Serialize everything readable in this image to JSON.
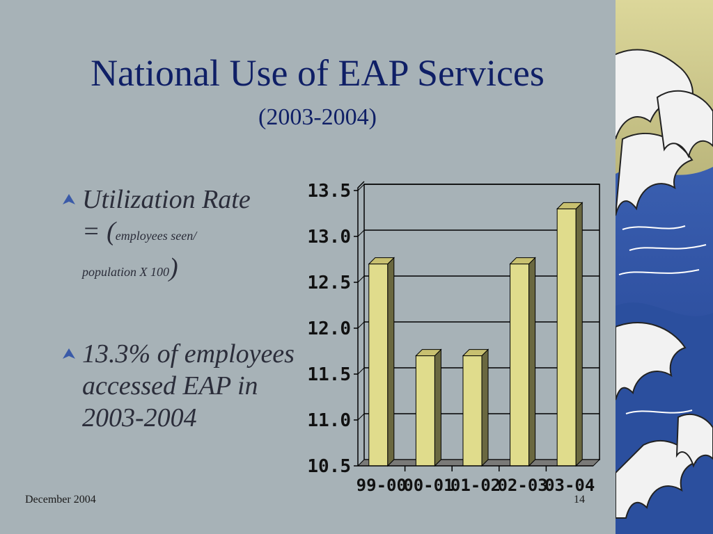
{
  "slide": {
    "title": "National Use of EAP Services",
    "subtitle": "(2003-2004)",
    "bullets": {
      "b1_line1": "Utilization Rate",
      "b1_line2a": "= (",
      "b1_line2b": "employees seen/",
      "b1_line3a": "population X 100",
      "b1_line3b": ")",
      "b2": "13.3% of employees accessed EAP in 2003-2004"
    },
    "footer": {
      "date": "December 2004",
      "page": "14"
    }
  },
  "colors": {
    "background": "#a7b2b7",
    "title": "#0f1f66",
    "bar_face": "#e0dc8c",
    "bar_side": "#6a6840",
    "bar_top": "#c8c070",
    "gridline": "#000000",
    "bullet_mark": "#3a5aa8"
  },
  "chart_data": {
    "type": "bar",
    "categories": [
      "99-00",
      "00-01",
      "01-02",
      "02-03",
      "03-04"
    ],
    "values": [
      12.7,
      11.7,
      11.7,
      12.7,
      13.3
    ],
    "ylim": [
      10.5,
      13.5
    ],
    "yticks": [
      "10.5",
      "11.0",
      "11.5",
      "12.0",
      "12.5",
      "13.0",
      "13.5"
    ],
    "title": "",
    "xlabel": "",
    "ylabel": "",
    "grid": true,
    "style": "3d"
  }
}
